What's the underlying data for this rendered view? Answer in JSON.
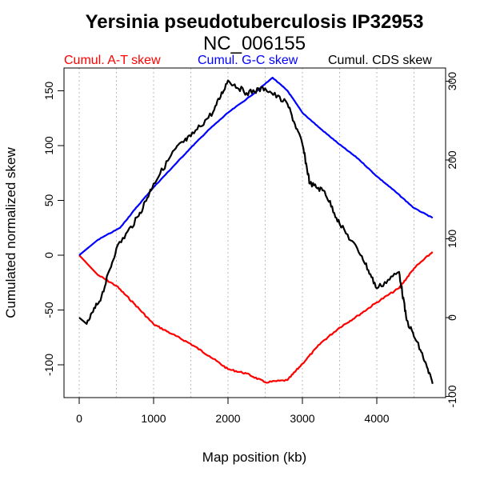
{
  "chart_data": {
    "type": "line",
    "title": "Yersinia pseudotuberculosis IP32953",
    "subtitle": "NC_006155",
    "xlabel": "Map position (kb)",
    "ylabel": "Cumulated normalized skew",
    "xlim": [
      0,
      4750
    ],
    "ylim_left": [
      -125,
      175
    ],
    "ylim_right": [
      -100,
      300
    ],
    "x_ticks": [
      "0",
      "1000",
      "2000",
      "3000",
      "4000"
    ],
    "x_tick_values": [
      0,
      1000,
      2000,
      3000,
      4000
    ],
    "y_ticks_left": [
      "-100",
      "-50",
      "0",
      "50",
      "100",
      "150"
    ],
    "y_tick_values_left": [
      -100,
      -50,
      0,
      50,
      100,
      150
    ],
    "y_ticks_right": [
      "-100",
      "0",
      "100",
      "200",
      "300"
    ],
    "y_tick_values_right": [
      -100,
      0,
      100,
      200,
      300
    ],
    "grid": "vertical dotted every 500 kb",
    "legend_placement": "top",
    "series": [
      {
        "name": "Cumul. A-T skew",
        "color": "#ff0000",
        "axis": "left",
        "x": [
          0,
          250,
          500,
          750,
          1000,
          1250,
          1500,
          1750,
          2000,
          2250,
          2500,
          2800,
          3000,
          3250,
          3500,
          3750,
          4000,
          4300,
          4500,
          4750
        ],
        "y": [
          0,
          -18,
          -28,
          -45,
          -63,
          -72,
          -81,
          -92,
          -104,
          -108,
          -116,
          -114,
          -99,
          -80,
          -66,
          -55,
          -43,
          -30,
          -12,
          3
        ]
      },
      {
        "name": "Cumul. G-C skew",
        "color": "#0000ff",
        "axis": "left",
        "x": [
          0,
          250,
          550,
          750,
          1000,
          1250,
          1500,
          1750,
          2000,
          2300,
          2600,
          2800,
          3000,
          3250,
          3500,
          3750,
          4000,
          4250,
          4500,
          4750
        ],
        "y": [
          0,
          14,
          25,
          42,
          62,
          80,
          98,
          115,
          130,
          145,
          162,
          150,
          130,
          115,
          101,
          88,
          72,
          58,
          43,
          34
        ]
      },
      {
        "name": "Cumul. CDS skew",
        "color": "#000000",
        "axis": "right",
        "x": [
          0,
          100,
          300,
          500,
          800,
          1000,
          1300,
          1500,
          1800,
          2000,
          2250,
          2500,
          2800,
          3000,
          3100,
          3300,
          3500,
          3800,
          4000,
          4300,
          4400,
          4600,
          4750
        ],
        "y": [
          0,
          -8,
          27,
          88,
          129,
          170,
          215,
          230,
          261,
          301,
          285,
          291,
          271,
          220,
          170,
          160,
          119,
          78,
          37,
          58,
          -3,
          -44,
          -84
        ]
      }
    ]
  }
}
